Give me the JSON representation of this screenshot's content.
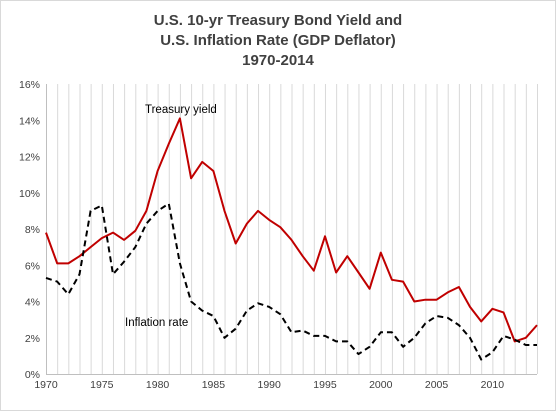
{
  "chart_data": {
    "type": "line",
    "title_lines": [
      "U.S. 10-yr Treasury Bond Yield and",
      "U.S. Inflation Rate (GDP Deflator)",
      "1970-2014"
    ],
    "xlabel": "",
    "ylabel": "",
    "xlim": [
      1970,
      2014
    ],
    "ylim": [
      0,
      16
    ],
    "x_ticks": [
      "1970",
      "1975",
      "1980",
      "1985",
      "1990",
      "1995",
      "2000",
      "2005",
      "2010"
    ],
    "y_ticks": [
      "0%",
      "2%",
      "4%",
      "6%",
      "8%",
      "10%",
      "12%",
      "14%",
      "16%"
    ],
    "grid": "vertical gridlines at every year",
    "legend": "none",
    "x": [
      1970,
      1971,
      1972,
      1973,
      1974,
      1975,
      1976,
      1977,
      1978,
      1979,
      1980,
      1981,
      1982,
      1983,
      1984,
      1985,
      1986,
      1987,
      1988,
      1989,
      1990,
      1991,
      1992,
      1993,
      1994,
      1995,
      1996,
      1997,
      1998,
      1999,
      2000,
      2001,
      2002,
      2003,
      2004,
      2005,
      2006,
      2007,
      2008,
      2009,
      2010,
      2011,
      2012,
      2013,
      2014
    ],
    "series": [
      {
        "name": "Treasury yield",
        "color": "#c00000",
        "style": "solid",
        "values": [
          7.8,
          6.1,
          6.1,
          6.5,
          7.0,
          7.5,
          7.8,
          7.4,
          7.9,
          9.0,
          11.2,
          12.7,
          14.1,
          10.8,
          11.7,
          11.2,
          9.0,
          7.2,
          8.3,
          9.0,
          8.5,
          8.1,
          7.4,
          6.5,
          5.7,
          7.6,
          5.6,
          6.5,
          5.6,
          4.7,
          6.7,
          5.2,
          5.1,
          4.0,
          4.1,
          4.1,
          4.5,
          4.8,
          3.7,
          2.9,
          3.6,
          3.4,
          1.8,
          2.0,
          2.7
        ]
      },
      {
        "name": "Inflation rate",
        "color": "#000000",
        "style": "dashed",
        "values": [
          5.3,
          5.1,
          4.4,
          5.5,
          9.0,
          9.3,
          5.5,
          6.2,
          7.0,
          8.3,
          9.0,
          9.4,
          6.1,
          4.0,
          3.5,
          3.2,
          2.0,
          2.5,
          3.5,
          3.9,
          3.7,
          3.3,
          2.3,
          2.4,
          2.1,
          2.1,
          1.8,
          1.8,
          1.1,
          1.5,
          2.3,
          2.3,
          1.5,
          2.0,
          2.8,
          3.2,
          3.1,
          2.7,
          2.0,
          0.8,
          1.2,
          2.1,
          1.9,
          1.6,
          1.6
        ]
      }
    ]
  }
}
